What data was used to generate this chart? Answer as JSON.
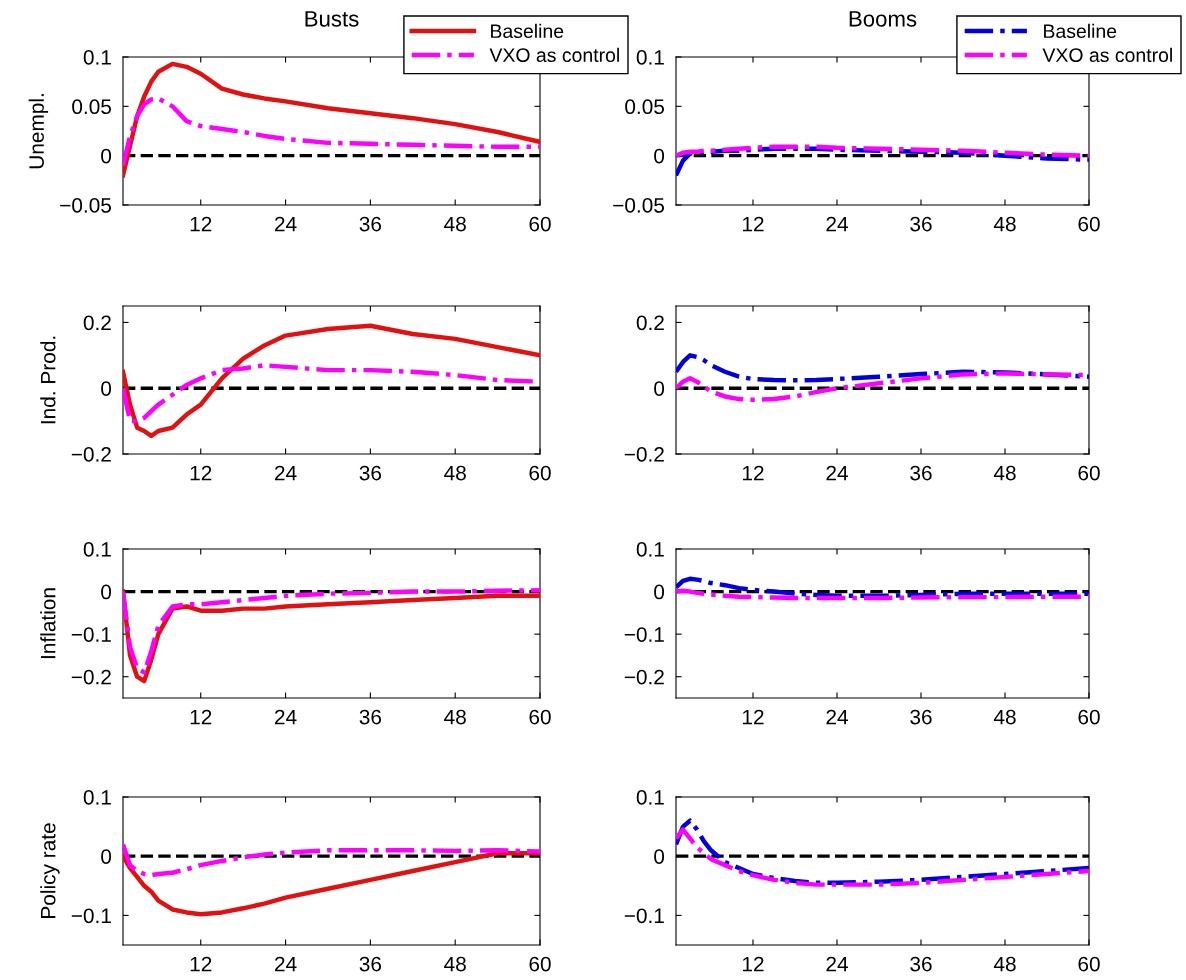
{
  "chart_data": [
    {
      "type": "line",
      "title": "Busts",
      "ylabel": "Unempl.",
      "legend": "top right",
      "xlim": [
        1,
        60
      ],
      "xticks": [
        12,
        24,
        36,
        48,
        60
      ],
      "ylim": [
        -0.05,
        0.1
      ],
      "yticks": [
        -0.05,
        0,
        0.05,
        0.1
      ],
      "grid": false,
      "x": [
        1,
        2,
        3,
        4,
        5,
        6,
        8,
        10,
        12,
        15,
        18,
        21,
        24,
        30,
        36,
        42,
        48,
        54,
        60
      ],
      "ref_lines": [
        {
          "axis": "y",
          "value": 0,
          "color": "#000000",
          "line_style": "dashed"
        }
      ],
      "series": [
        {
          "name": "Baseline",
          "color": "#e41010",
          "line_style": "solid",
          "values": [
            -0.02,
            0.01,
            0.04,
            0.06,
            0.075,
            0.085,
            0.093,
            0.09,
            0.083,
            0.068,
            0.062,
            0.058,
            0.055,
            0.048,
            0.043,
            0.038,
            0.032,
            0.024,
            0.014
          ]
        },
        {
          "name": "VXO as control",
          "color": "#ff00ff",
          "line_style": "dashdot",
          "values": [
            -0.01,
            0.02,
            0.04,
            0.052,
            0.057,
            0.058,
            0.05,
            0.035,
            0.03,
            0.027,
            0.024,
            0.02,
            0.017,
            0.013,
            0.012,
            0.011,
            0.01,
            0.009,
            0.009
          ]
        }
      ]
    },
    {
      "type": "line",
      "title": "Booms",
      "legend": "top right",
      "xlim": [
        1,
        60
      ],
      "xticks": [
        12,
        24,
        36,
        48,
        60
      ],
      "ylim": [
        -0.05,
        0.1
      ],
      "yticks": [
        -0.05,
        0,
        0.05,
        0.1
      ],
      "grid": false,
      "x": [
        1,
        2,
        3,
        4,
        5,
        6,
        8,
        10,
        12,
        15,
        18,
        21,
        24,
        30,
        36,
        42,
        48,
        54,
        60
      ],
      "ref_lines": [
        {
          "axis": "y",
          "value": 0,
          "color": "#000000",
          "line_style": "dashed"
        }
      ],
      "series": [
        {
          "name": "Baseline",
          "color": "#0000e0",
          "line_style": "dashdot",
          "values": [
            -0.02,
            -0.005,
            0.002,
            0.003,
            0.004,
            0.004,
            0.005,
            0.005,
            0.006,
            0.007,
            0.007,
            0.007,
            0.006,
            0.005,
            0.004,
            0.003,
            0.0,
            -0.003,
            -0.004
          ]
        },
        {
          "name": "VXO as control",
          "color": "#ff00ff",
          "line_style": "dashdot",
          "values": [
            0.0,
            0.003,
            0.004,
            0.004,
            0.005,
            0.005,
            0.006,
            0.007,
            0.008,
            0.009,
            0.009,
            0.009,
            0.008,
            0.007,
            0.006,
            0.005,
            0.003,
            0.001,
            0.0
          ]
        }
      ]
    },
    {
      "type": "line",
      "ylabel": "Ind. Prod.",
      "xlim": [
        1,
        60
      ],
      "xticks": [
        12,
        24,
        36,
        48,
        60
      ],
      "ylim": [
        -0.2,
        0.25
      ],
      "yticks": [
        -0.2,
        0,
        0.2
      ],
      "grid": false,
      "x": [
        1,
        2,
        3,
        4,
        5,
        6,
        8,
        10,
        12,
        15,
        18,
        21,
        24,
        30,
        36,
        42,
        48,
        54,
        60
      ],
      "ref_lines": [
        {
          "axis": "y",
          "value": 0,
          "color": "#000000",
          "line_style": "dashed"
        }
      ],
      "series": [
        {
          "color": "#e41010",
          "line_style": "solid",
          "values": [
            0.05,
            -0.05,
            -0.12,
            -0.13,
            -0.145,
            -0.13,
            -0.12,
            -0.08,
            -0.05,
            0.03,
            0.09,
            0.13,
            0.16,
            0.18,
            0.19,
            0.165,
            0.15,
            0.125,
            0.1
          ]
        },
        {
          "color": "#ff00ff",
          "line_style": "dashdot",
          "values": [
            0.0,
            -0.1,
            -0.1,
            -0.09,
            -0.07,
            -0.05,
            -0.02,
            0.01,
            0.03,
            0.055,
            0.06,
            0.07,
            0.065,
            0.055,
            0.055,
            0.05,
            0.04,
            0.025,
            0.02
          ]
        }
      ]
    },
    {
      "type": "line",
      "xlim": [
        1,
        60
      ],
      "xticks": [
        12,
        24,
        36,
        48,
        60
      ],
      "ylim": [
        -0.2,
        0.25
      ],
      "yticks": [
        -0.2,
        0,
        0.2
      ],
      "grid": false,
      "x": [
        1,
        2,
        3,
        4,
        5,
        6,
        8,
        10,
        12,
        15,
        18,
        21,
        24,
        30,
        36,
        42,
        48,
        54,
        60
      ],
      "ref_lines": [
        {
          "axis": "y",
          "value": 0,
          "color": "#000000",
          "line_style": "dashed"
        }
      ],
      "series": [
        {
          "color": "#0000e0",
          "line_style": "dashdot",
          "values": [
            0.05,
            0.08,
            0.1,
            0.095,
            0.085,
            0.07,
            0.05,
            0.035,
            0.028,
            0.025,
            0.024,
            0.025,
            0.028,
            0.035,
            0.043,
            0.05,
            0.048,
            0.042,
            0.035
          ]
        },
        {
          "color": "#ff00ff",
          "line_style": "dashdot",
          "values": [
            0.0,
            0.02,
            0.03,
            0.02,
            0.005,
            -0.01,
            -0.025,
            -0.033,
            -0.035,
            -0.033,
            -0.025,
            -0.012,
            0.0,
            0.015,
            0.03,
            0.042,
            0.045,
            0.042,
            0.04
          ]
        }
      ]
    },
    {
      "type": "line",
      "ylabel": "Inflation",
      "xlim": [
        1,
        60
      ],
      "xticks": [
        12,
        24,
        36,
        48,
        60
      ],
      "ylim": [
        -0.25,
        0.1
      ],
      "yticks": [
        -0.2,
        -0.1,
        0,
        0.1
      ],
      "grid": false,
      "x": [
        1,
        2,
        3,
        4,
        5,
        6,
        8,
        10,
        12,
        15,
        18,
        21,
        24,
        30,
        36,
        42,
        48,
        54,
        60
      ],
      "ref_lines": [
        {
          "axis": "y",
          "value": 0,
          "color": "#000000",
          "line_style": "dashed"
        }
      ],
      "series": [
        {
          "color": "#e41010",
          "line_style": "solid",
          "values": [
            0.0,
            -0.15,
            -0.2,
            -0.21,
            -0.16,
            -0.1,
            -0.04,
            -0.035,
            -0.045,
            -0.045,
            -0.04,
            -0.04,
            -0.035,
            -0.03,
            -0.025,
            -0.02,
            -0.015,
            -0.01,
            -0.01
          ]
        },
        {
          "color": "#ff00ff",
          "line_style": "dashdot",
          "values": [
            0.0,
            -0.13,
            -0.18,
            -0.19,
            -0.14,
            -0.08,
            -0.035,
            -0.03,
            -0.03,
            -0.025,
            -0.02,
            -0.015,
            -0.01,
            -0.005,
            -0.003,
            0.0,
            0.0,
            0.002,
            0.003
          ]
        }
      ]
    },
    {
      "type": "line",
      "xlim": [
        1,
        60
      ],
      "xticks": [
        12,
        24,
        36,
        48,
        60
      ],
      "ylim": [
        -0.25,
        0.1
      ],
      "yticks": [
        -0.2,
        -0.1,
        0,
        0.1
      ],
      "grid": false,
      "x": [
        1,
        2,
        3,
        4,
        5,
        6,
        8,
        10,
        12,
        15,
        18,
        21,
        24,
        30,
        36,
        42,
        48,
        54,
        60
      ],
      "ref_lines": [
        {
          "axis": "y",
          "value": 0,
          "color": "#000000",
          "line_style": "dashed"
        }
      ],
      "series": [
        {
          "color": "#0000e0",
          "line_style": "dashdot",
          "values": [
            0.01,
            0.025,
            0.03,
            0.028,
            0.025,
            0.02,
            0.015,
            0.008,
            0.004,
            0.0,
            -0.005,
            -0.008,
            -0.01,
            -0.01,
            -0.008,
            -0.005,
            -0.005,
            -0.005,
            -0.005
          ]
        },
        {
          "color": "#ff00ff",
          "line_style": "dashdot",
          "values": [
            0.0,
            0.002,
            0.0,
            -0.003,
            -0.005,
            -0.007,
            -0.01,
            -0.012,
            -0.013,
            -0.014,
            -0.015,
            -0.015,
            -0.015,
            -0.015,
            -0.014,
            -0.013,
            -0.013,
            -0.012,
            -0.012
          ]
        }
      ]
    },
    {
      "type": "line",
      "ylabel": "Policy rate",
      "xlim": [
        1,
        60
      ],
      "xticks": [
        12,
        24,
        36,
        48,
        60
      ],
      "ylim": [
        -0.15,
        0.1
      ],
      "yticks": [
        -0.1,
        0,
        0.1
      ],
      "grid": false,
      "x": [
        1,
        2,
        3,
        4,
        5,
        6,
        8,
        10,
        12,
        15,
        18,
        21,
        24,
        30,
        36,
        42,
        48,
        54,
        60
      ],
      "ref_lines": [
        {
          "axis": "y",
          "value": 0,
          "color": "#000000",
          "line_style": "dashed"
        }
      ],
      "series": [
        {
          "color": "#e41010",
          "line_style": "solid",
          "values": [
            0.0,
            -0.02,
            -0.035,
            -0.05,
            -0.06,
            -0.075,
            -0.09,
            -0.095,
            -0.098,
            -0.095,
            -0.088,
            -0.08,
            -0.07,
            -0.055,
            -0.04,
            -0.025,
            -0.01,
            0.005,
            0.005
          ]
        },
        {
          "color": "#ff00ff",
          "line_style": "dashdot",
          "values": [
            0.02,
            -0.015,
            -0.025,
            -0.03,
            -0.032,
            -0.03,
            -0.028,
            -0.022,
            -0.015,
            -0.008,
            -0.002,
            0.003,
            0.006,
            0.01,
            0.01,
            0.01,
            0.009,
            0.01,
            0.008
          ]
        }
      ]
    },
    {
      "type": "line",
      "xlim": [
        1,
        60
      ],
      "xticks": [
        12,
        24,
        36,
        48,
        60
      ],
      "ylim": [
        -0.15,
        0.1
      ],
      "yticks": [
        -0.1,
        0,
        0.1
      ],
      "grid": false,
      "x": [
        1,
        2,
        3,
        4,
        5,
        6,
        8,
        10,
        12,
        15,
        18,
        21,
        24,
        30,
        36,
        42,
        48,
        54,
        60
      ],
      "ref_lines": [
        {
          "axis": "y",
          "value": 0,
          "color": "#000000",
          "line_style": "dashed"
        }
      ],
      "series": [
        {
          "color": "#0000e0",
          "line_style": "dashdot",
          "values": [
            0.02,
            0.05,
            0.06,
            0.045,
            0.025,
            0.01,
            -0.01,
            -0.02,
            -0.03,
            -0.037,
            -0.042,
            -0.045,
            -0.045,
            -0.043,
            -0.04,
            -0.035,
            -0.03,
            -0.025,
            -0.02
          ]
        },
        {
          "color": "#ff00ff",
          "line_style": "dashdot",
          "values": [
            0.03,
            0.045,
            0.03,
            0.015,
            0.005,
            -0.005,
            -0.015,
            -0.025,
            -0.032,
            -0.04,
            -0.045,
            -0.048,
            -0.048,
            -0.048,
            -0.045,
            -0.04,
            -0.035,
            -0.03,
            -0.025
          ]
        }
      ]
    }
  ]
}
